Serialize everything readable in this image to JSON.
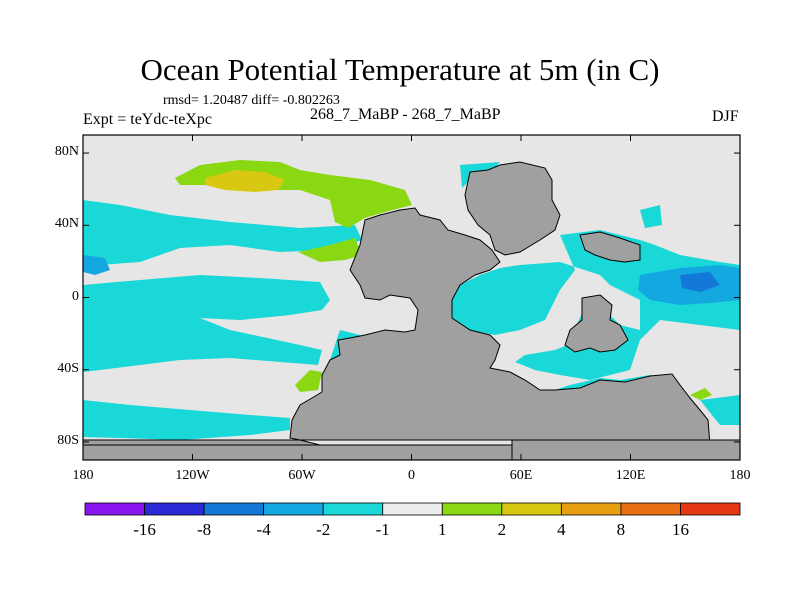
{
  "title": "Ocean Potential Temperature at 5m (in C)",
  "stats_line": "rmsd= 1.20487 diff= -0.802263",
  "experiment_label": "Expt = teYdc-teXpc",
  "case_label": "268_7_MaBP - 268_7_MaBP",
  "season_label": "DJF",
  "lat_axis": {
    "ticks": [
      {
        "value": 80,
        "label": "80N"
      },
      {
        "value": 40,
        "label": "40N"
      },
      {
        "value": 0,
        "label": "0"
      },
      {
        "value": -40,
        "label": "40S"
      },
      {
        "value": -80,
        "label": "80S"
      }
    ],
    "range": [
      -90,
      90
    ]
  },
  "lon_axis": {
    "ticks": [
      {
        "value": -180,
        "label": "180"
      },
      {
        "value": -120,
        "label": "120W"
      },
      {
        "value": -60,
        "label": "60W"
      },
      {
        "value": 0,
        "label": "0"
      },
      {
        "value": 60,
        "label": "60E"
      },
      {
        "value": 120,
        "label": "120E"
      },
      {
        "value": 180,
        "label": "180"
      }
    ],
    "range": [
      -180,
      180
    ]
  },
  "colorbar": {
    "colors": [
      "#8a17f0",
      "#2b2bd6",
      "#1478d8",
      "#14a8e0",
      "#1ad8d8",
      "#ececec",
      "#8ad812",
      "#d8c812",
      "#e8a012",
      "#e87012",
      "#e43812"
    ],
    "labels": [
      "-16",
      "-8",
      "-4",
      "-2",
      "-1",
      "1",
      "2",
      "4",
      "8",
      "16"
    ]
  },
  "map_colors": {
    "land": "#a0a0a0",
    "background": "#e6e6e6",
    "cyan": "#1ad8d8",
    "light_blue": "#14a8e0",
    "blue": "#1478d8",
    "green": "#8ad812",
    "yellow": "#d8c812"
  }
}
